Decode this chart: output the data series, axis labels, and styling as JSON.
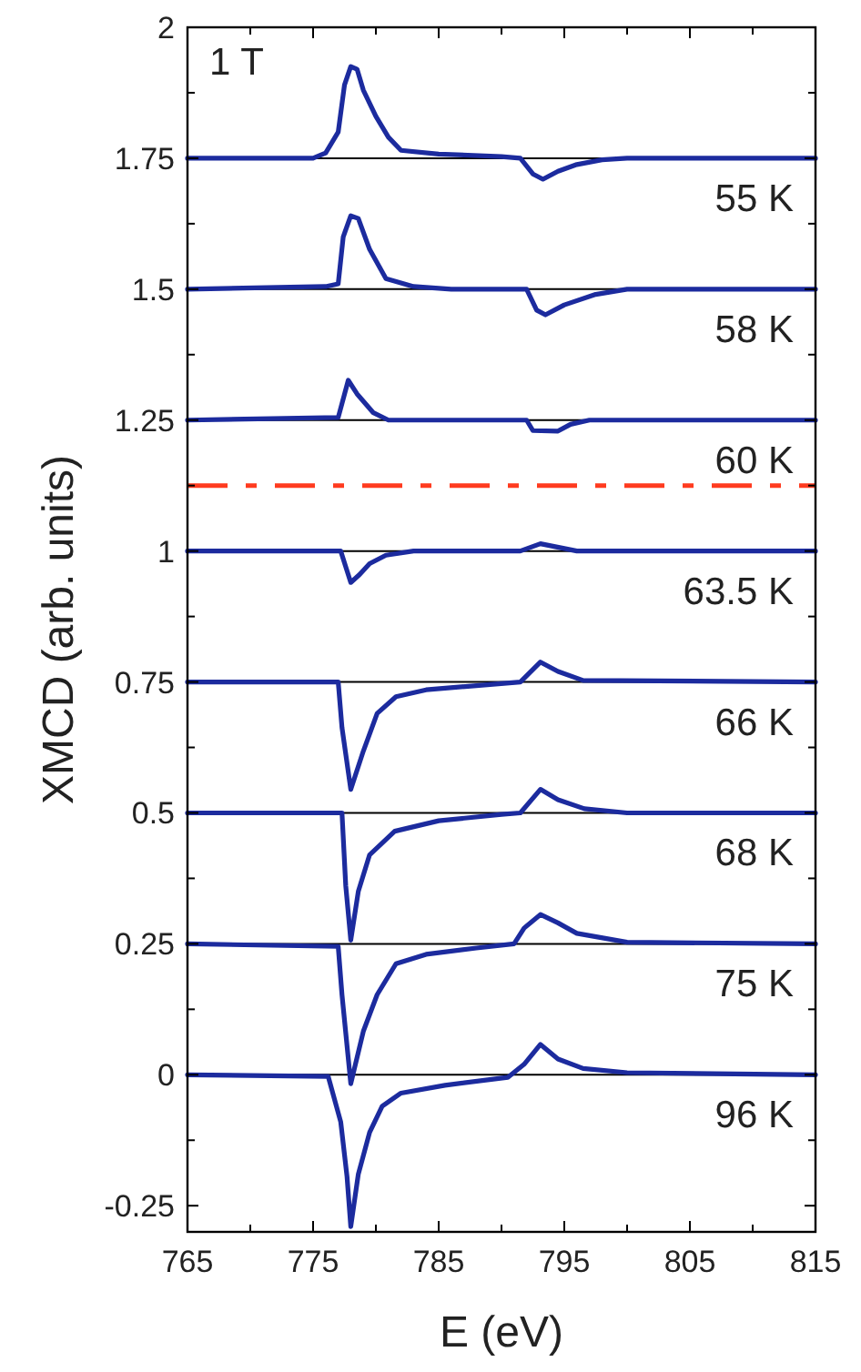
{
  "chart_data": {
    "type": "line",
    "xlabel": "E (eV)",
    "ylabel": "XMCD (arb. units)",
    "annotations": [
      "1 T"
    ],
    "xlim": [
      765,
      815
    ],
    "ylim": [
      -0.3,
      2
    ],
    "xticks": [
      765,
      {
        "value": 770,
        "label": null
      },
      775,
      {
        "value": 780,
        "label": null
      },
      785,
      {
        "value": 790,
        "label": null
      },
      795,
      {
        "value": 800,
        "label": null
      },
      805,
      {
        "value": 810,
        "label": null
      },
      815
    ],
    "yticks": [
      -0.25,
      {
        "value": -0.125,
        "label": null
      },
      0,
      {
        "value": 0.125,
        "label": null
      },
      0.25,
      {
        "value": 0.375,
        "label": null
      },
      0.5,
      {
        "value": 0.625,
        "label": null
      },
      0.75,
      {
        "value": 0.875,
        "label": null
      },
      1,
      {
        "value": 1.125,
        "label": null
      },
      1.25,
      {
        "value": 1.375,
        "label": null
      },
      1.5,
      {
        "value": 1.625,
        "label": null
      },
      1.75,
      {
        "value": 1.875,
        "label": null
      },
      2
    ],
    "grid": false,
    "line_style": "solid",
    "ref_lines": [
      {
        "axis": "y",
        "value": 0,
        "color": "#000000"
      },
      {
        "axis": "y",
        "value": 0.25,
        "color": "#000000"
      },
      {
        "axis": "y",
        "value": 0.5,
        "color": "#000000"
      },
      {
        "axis": "y",
        "value": 0.75,
        "color": "#000000"
      },
      {
        "axis": "y",
        "value": 1,
        "color": "#000000"
      },
      {
        "axis": "y",
        "value": 1.25,
        "color": "#000000"
      },
      {
        "axis": "y",
        "value": 1.5,
        "color": "#000000"
      },
      {
        "axis": "y",
        "value": 1.75,
        "color": "#000000"
      },
      {
        "axis": "y",
        "value": 1.125,
        "color": "#ff3b1f",
        "line_style": "dashdot"
      }
    ],
    "series": [
      {
        "name": "55 K",
        "color": "#1c2b9e",
        "x": [
          765,
          775,
          776,
          777,
          777.5,
          778,
          778.5,
          779,
          780,
          781,
          782,
          785,
          790,
          791.5,
          792.5,
          793.3,
          794.5,
          796,
          798,
          800,
          815
        ],
        "values": [
          1.75,
          1.75,
          1.76,
          1.8,
          1.89,
          1.925,
          1.92,
          1.88,
          1.83,
          1.79,
          1.765,
          1.758,
          1.753,
          1.75,
          1.72,
          1.71,
          1.725,
          1.738,
          1.747,
          1.75,
          1.75
        ]
      },
      {
        "name": "58 K",
        "color": "#1c2b9e",
        "x": [
          765,
          776,
          777,
          777.4,
          778,
          778.6,
          779.5,
          780.8,
          783,
          786,
          792,
          792.8,
          793.5,
          795,
          797.5,
          800,
          815
        ],
        "values": [
          1.5,
          1.505,
          1.51,
          1.6,
          1.64,
          1.635,
          1.576,
          1.52,
          1.505,
          1.5,
          1.5,
          1.46,
          1.451,
          1.47,
          1.49,
          1.5,
          1.5
        ]
      },
      {
        "name": "60 K",
        "color": "#1c2b9e",
        "x": [
          765,
          777,
          777.8,
          778.5,
          779.8,
          781,
          792,
          792.5,
          794.5,
          795.5,
          797,
          815
        ],
        "values": [
          1.25,
          1.255,
          1.326,
          1.3,
          1.264,
          1.25,
          1.25,
          1.23,
          1.229,
          1.242,
          1.25,
          1.25
        ]
      },
      {
        "name": "63.5 K",
        "color": "#1c2b9e",
        "x": [
          765,
          777.2,
          777.6,
          778,
          778.7,
          779.5,
          780.8,
          783,
          791.5,
          793.1,
          796,
          815
        ],
        "values": [
          1,
          1,
          0.97,
          0.94,
          0.955,
          0.976,
          0.992,
          1,
          1,
          1.014,
          1,
          1
        ]
      },
      {
        "name": "66 K",
        "color": "#1c2b9e",
        "x": [
          765,
          777,
          777.3,
          778,
          779,
          780.1,
          781.6,
          784,
          788,
          791.5,
          793.1,
          794.5,
          796.5,
          815
        ],
        "values": [
          0.75,
          0.75,
          0.663,
          0.545,
          0.618,
          0.69,
          0.722,
          0.735,
          0.743,
          0.75,
          0.788,
          0.77,
          0.753,
          0.75
        ]
      },
      {
        "name": "68 K",
        "color": "#1c2b9e",
        "x": [
          765,
          777.3,
          777.6,
          778,
          778.6,
          779.5,
          781.5,
          785,
          790,
          791.5,
          793.1,
          794.5,
          796.6,
          800,
          815
        ],
        "values": [
          0.5,
          0.5,
          0.361,
          0.257,
          0.35,
          0.42,
          0.465,
          0.485,
          0.497,
          0.5,
          0.545,
          0.525,
          0.508,
          0.5,
          0.5
        ]
      },
      {
        "name": "75 K",
        "color": "#1c2b9e",
        "x": [
          765,
          777,
          777.3,
          778,
          779,
          780.1,
          781.6,
          784,
          788,
          791,
          791.8,
          793.1,
          794.5,
          796,
          800,
          815
        ],
        "values": [
          0.25,
          0.245,
          0.153,
          -0.017,
          0.083,
          0.153,
          0.212,
          0.23,
          0.242,
          0.25,
          0.28,
          0.306,
          0.29,
          0.27,
          0.253,
          0.25
        ]
      },
      {
        "name": "96 K",
        "color": "#1c2b9e",
        "x": [
          765,
          776.2,
          777.2,
          777.7,
          778,
          778.6,
          779.5,
          780.5,
          782,
          785.5,
          790.5,
          791.8,
          793.1,
          794.5,
          796.5,
          800,
          815
        ],
        "values": [
          0,
          -0.003,
          -0.09,
          -0.194,
          -0.29,
          -0.19,
          -0.11,
          -0.06,
          -0.035,
          -0.02,
          -0.005,
          0.02,
          0.058,
          0.03,
          0.012,
          0.004,
          0
        ]
      }
    ]
  }
}
